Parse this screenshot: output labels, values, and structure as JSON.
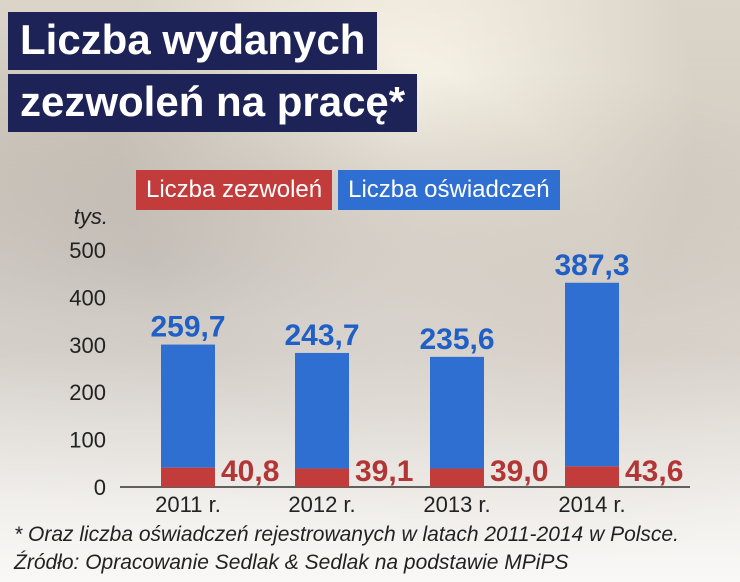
{
  "title": {
    "line1": "Liczba wydanych",
    "line2": "zezwoleń na pracę*"
  },
  "legend": {
    "permits_label": "Liczba zezwoleń",
    "declarations_label": "Liczba oświadczeń"
  },
  "colors": {
    "title_bg": "#1e2357",
    "permits": "#c33c3c",
    "declarations": "#2f6fd2"
  },
  "chart_data": {
    "type": "bar",
    "categories": [
      "2011 r.",
      "2012 r.",
      "2013 r.",
      "2014 r."
    ],
    "series": [
      {
        "name": "Liczba zezwoleń",
        "values": [
          40.8,
          39.1,
          39.0,
          43.6
        ],
        "labels": [
          "40,8",
          "39,1",
          "39,0",
          "43,6"
        ]
      },
      {
        "name": "Liczba oświadczeń",
        "values": [
          259.7,
          243.7,
          235.6,
          387.3
        ],
        "labels": [
          "259,7",
          "243,7",
          "235,6",
          "387,3"
        ]
      }
    ],
    "ylabel": "tys.",
    "ylim": [
      0,
      500
    ],
    "yticks": [
      0,
      100,
      200,
      300,
      400,
      500
    ],
    "grid": false,
    "legend_position": "top"
  },
  "footnotes": {
    "note": "* Oraz liczba oświadczeń rejestrowanych w latach 2011-2014 w Polsce.",
    "source": "Źródło: Opracowanie Sedlak & Sedlak na podstawie MPiPS"
  }
}
